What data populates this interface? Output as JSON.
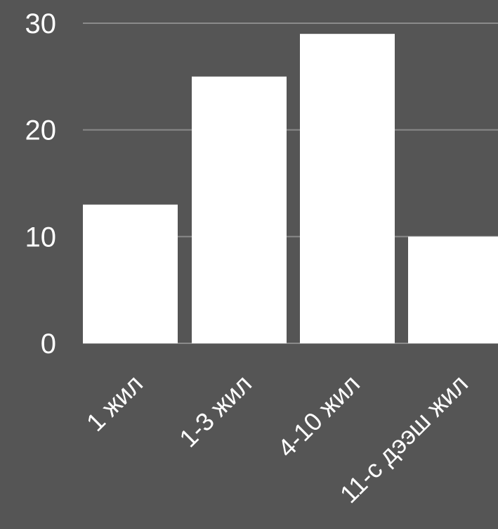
{
  "chart_data": {
    "type": "bar",
    "title": "",
    "xlabel": "",
    "ylabel": "",
    "categories": [
      "1 жил",
      "1-3 жил",
      "4-10 жил",
      "11-с дээш жил"
    ],
    "values": [
      13,
      25,
      29,
      10
    ],
    "ylim": [
      0,
      30
    ],
    "yticks": [
      0,
      10,
      20,
      30
    ],
    "grid": true,
    "legend": "none",
    "colors": {
      "background": "#555555",
      "bar": "#ffffff",
      "grid": "#8a8a8a",
      "text": "#ffffff"
    }
  }
}
